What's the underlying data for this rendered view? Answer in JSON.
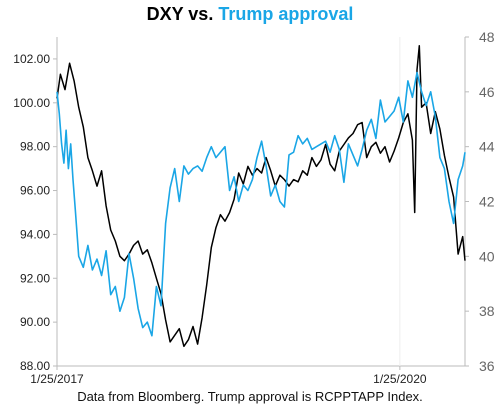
{
  "chart_data": {
    "type": "line",
    "title_part1": "DXY vs.",
    "title_part2": "Trump approval",
    "colors": {
      "dxy": "#000000",
      "approval": "#1aa6e6",
      "axis": "#bbbbbb"
    },
    "x_ticks": [
      "1/25/2017",
      "1/25/2020"
    ],
    "y_left": {
      "min": 88,
      "max": 103,
      "ticks": [
        "88.00",
        "90.00",
        "92.00",
        "94.00",
        "96.00",
        "98.00",
        "100.00",
        "102.00"
      ]
    },
    "y_right": {
      "min": 36,
      "max": 48,
      "ticks": [
        "36",
        "38",
        "40",
        "42",
        "44",
        "46",
        "48"
      ]
    },
    "x_range": [
      2017.07,
      2020.64
    ],
    "grid": false,
    "legend": "none",
    "series": [
      {
        "key": "dxy",
        "axis": "left",
        "x": [
          2017.07,
          2017.1,
          2017.14,
          2017.18,
          2017.22,
          2017.26,
          2017.3,
          2017.34,
          2017.38,
          2017.42,
          2017.46,
          2017.5,
          2017.54,
          2017.58,
          2017.62,
          2017.66,
          2017.7,
          2017.74,
          2017.78,
          2017.82,
          2017.86,
          2017.9,
          2017.94,
          2017.98,
          2018.02,
          2018.06,
          2018.1,
          2018.14,
          2018.18,
          2018.22,
          2018.26,
          2018.3,
          2018.34,
          2018.38,
          2018.42,
          2018.46,
          2018.5,
          2018.54,
          2018.58,
          2018.62,
          2018.66,
          2018.7,
          2018.74,
          2018.78,
          2018.82,
          2018.86,
          2018.9,
          2018.94,
          2018.98,
          2019.02,
          2019.06,
          2019.1,
          2019.14,
          2019.18,
          2019.22,
          2019.26,
          2019.3,
          2019.34,
          2019.38,
          2019.42,
          2019.46,
          2019.5,
          2019.54,
          2019.58,
          2019.62,
          2019.66,
          2019.7,
          2019.74,
          2019.78,
          2019.82,
          2019.86,
          2019.9,
          2019.94,
          2019.98,
          2020.02,
          2020.06,
          2020.1,
          2020.14,
          2020.18,
          2020.2,
          2020.22,
          2020.24,
          2020.26,
          2020.3,
          2020.34,
          2020.38,
          2020.42,
          2020.46,
          2020.5,
          2020.54,
          2020.58,
          2020.62,
          2020.64
        ],
        "values": [
          100.2,
          101.3,
          100.6,
          101.8,
          101.0,
          99.8,
          98.9,
          97.5,
          96.9,
          96.2,
          96.9,
          95.3,
          94.2,
          93.7,
          93.0,
          92.8,
          93.1,
          93.5,
          93.7,
          93.1,
          93.3,
          92.7,
          92.0,
          91.3,
          90.1,
          89.1,
          89.4,
          89.7,
          88.9,
          89.2,
          89.8,
          89.0,
          90.2,
          91.7,
          93.4,
          94.3,
          94.9,
          94.6,
          95.0,
          95.6,
          96.8,
          96.3,
          97.1,
          96.7,
          97.0,
          96.8,
          97.5,
          96.9,
          96.2,
          96.7,
          96.5,
          96.2,
          96.5,
          96.4,
          96.9,
          96.7,
          97.5,
          97.1,
          97.4,
          98.1,
          97.2,
          96.9,
          97.8,
          98.1,
          98.4,
          98.6,
          99.0,
          99.1,
          97.5,
          98.0,
          98.2,
          97.7,
          98.0,
          97.3,
          97.8,
          98.4,
          99.1,
          99.5,
          98.3,
          95.0,
          101.5,
          102.6,
          99.8,
          100.0,
          98.6,
          99.6,
          98.8,
          97.6,
          96.6,
          95.7,
          93.1,
          93.9,
          92.8
        ]
      },
      {
        "key": "approval",
        "axis": "right",
        "x": [
          2017.07,
          2017.09,
          2017.11,
          2017.13,
          2017.15,
          2017.17,
          2017.19,
          2017.21,
          2017.23,
          2017.26,
          2017.3,
          2017.34,
          2017.38,
          2017.42,
          2017.46,
          2017.5,
          2017.54,
          2017.58,
          2017.62,
          2017.66,
          2017.7,
          2017.74,
          2017.78,
          2017.82,
          2017.86,
          2017.9,
          2017.94,
          2017.98,
          2018.02,
          2018.06,
          2018.1,
          2018.14,
          2018.18,
          2018.22,
          2018.26,
          2018.3,
          2018.34,
          2018.38,
          2018.42,
          2018.46,
          2018.5,
          2018.54,
          2018.58,
          2018.62,
          2018.66,
          2018.7,
          2018.74,
          2018.78,
          2018.82,
          2018.86,
          2018.9,
          2018.94,
          2018.98,
          2019.02,
          2019.06,
          2019.1,
          2019.14,
          2019.18,
          2019.22,
          2019.26,
          2019.3,
          2019.34,
          2019.38,
          2019.42,
          2019.46,
          2019.5,
          2019.54,
          2019.58,
          2019.62,
          2019.66,
          2019.7,
          2019.74,
          2019.78,
          2019.82,
          2019.86,
          2019.9,
          2019.94,
          2019.98,
          2020.02,
          2020.06,
          2020.1,
          2020.14,
          2020.18,
          2020.22,
          2020.26,
          2020.3,
          2020.34,
          2020.38,
          2020.42,
          2020.46,
          2020.5,
          2020.54,
          2020.58,
          2020.62,
          2020.64
        ],
        "values": [
          46.0,
          45.2,
          44.1,
          43.4,
          44.6,
          43.2,
          44.1,
          42.8,
          41.7,
          40.0,
          39.6,
          40.4,
          39.5,
          39.9,
          39.3,
          40.2,
          38.6,
          38.9,
          38.0,
          38.5,
          40.1,
          39.2,
          38.1,
          37.4,
          37.6,
          37.1,
          38.9,
          38.2,
          41.2,
          42.5,
          43.2,
          42.0,
          43.3,
          43.0,
          43.2,
          43.3,
          43.1,
          43.6,
          44.0,
          43.6,
          43.8,
          44.0,
          42.4,
          42.9,
          42.0,
          42.6,
          42.4,
          42.8,
          43.6,
          44.2,
          43.3,
          42.2,
          42.6,
          42.0,
          41.8,
          43.7,
          43.8,
          44.4,
          44.1,
          44.3,
          43.9,
          44.0,
          44.1,
          44.2,
          43.8,
          44.4,
          43.9,
          42.7,
          44.1,
          43.7,
          43.3,
          43.9,
          44.6,
          45.0,
          44.3,
          45.7,
          44.9,
          45.1,
          45.3,
          45.8,
          44.9,
          46.4,
          45.8,
          46.7,
          46.0,
          45.5,
          46.0,
          45.1,
          43.6,
          43.2,
          42.0,
          41.2,
          42.8,
          43.3,
          43.8
        ]
      }
    ]
  },
  "footnote": "Data from Bloomberg. Trump approval is RCPPTAPP Index."
}
